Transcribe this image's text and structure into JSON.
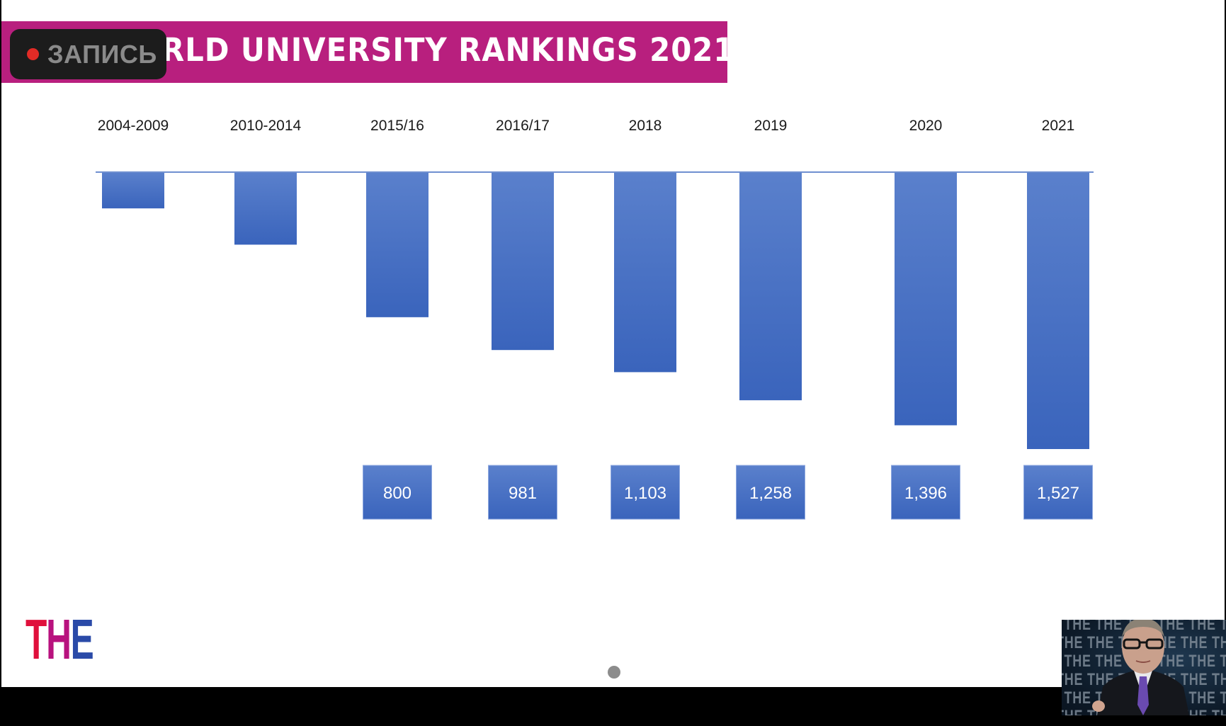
{
  "recording_badge": {
    "label": "ЗАПИСЬ",
    "dot_color": "#e22b26"
  },
  "slide": {
    "banner_title_visible": "RLD UNIVERSITY RANKINGS 2021",
    "banner_color": "#b81f7e",
    "logo": {
      "letters": [
        {
          "char": "T",
          "color": "#e0103c"
        },
        {
          "char": "H",
          "color": "#b8127e"
        },
        {
          "char": "E",
          "color": "#2a4aa8"
        }
      ]
    }
  },
  "video_overlay": {
    "background_pattern_text": "THE"
  },
  "chart_data": {
    "type": "bar",
    "orientation": "downward",
    "title": "",
    "xlabel": "",
    "ylabel": "",
    "categories": [
      "2004-2009",
      "2010-2014",
      "2015/16",
      "2016/17",
      "2018",
      "2019",
      "2020",
      "2021"
    ],
    "values": [
      200,
      400,
      800,
      981,
      1103,
      1258,
      1396,
      1527
    ],
    "value_labels": [
      null,
      null,
      "800",
      "981",
      "1,103",
      "1,258",
      "1,396",
      "1,527"
    ],
    "ylim": [
      0,
      1527
    ],
    "grid": false,
    "legend": "none",
    "bar_color_top": "#5a80cc",
    "bar_color_bottom": "#3a64bc",
    "axis_color": "#6f8fd0"
  }
}
